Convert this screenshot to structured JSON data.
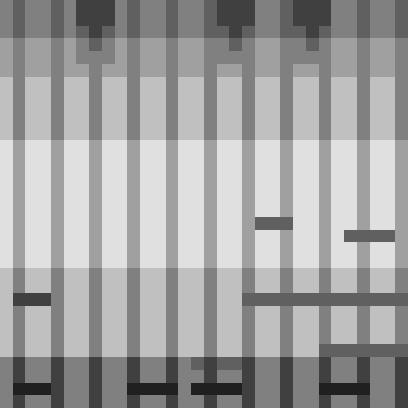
{
  "chart_data": {
    "type": "heatmap",
    "tick_labels": false,
    "cells": [
      [
        5,
        6,
        5,
        5,
        6,
        5,
        7,
        7,
        7,
        5,
        6,
        5,
        5,
        6,
        5,
        5,
        6,
        7,
        7,
        7,
        5,
        5,
        6,
        7,
        7,
        7,
        5,
        5,
        6,
        5,
        5,
        6
      ],
      [
        5,
        6,
        5,
        5,
        6,
        5,
        7,
        7,
        7,
        5,
        6,
        5,
        5,
        6,
        5,
        5,
        6,
        7,
        7,
        7,
        5,
        5,
        6,
        7,
        7,
        7,
        5,
        5,
        6,
        5,
        5,
        6
      ],
      [
        5,
        6,
        5,
        5,
        6,
        5,
        6,
        7,
        6,
        5,
        6,
        5,
        5,
        6,
        5,
        5,
        6,
        6,
        7,
        6,
        5,
        5,
        6,
        6,
        7,
        6,
        5,
        5,
        6,
        5,
        5,
        6
      ],
      [
        4,
        5,
        4,
        4,
        5,
        4,
        5,
        6,
        5,
        4,
        5,
        4,
        4,
        5,
        4,
        4,
        5,
        5,
        6,
        5,
        4,
        4,
        5,
        5,
        6,
        5,
        4,
        4,
        5,
        4,
        4,
        5
      ],
      [
        4,
        5,
        4,
        4,
        5,
        4,
        5,
        5,
        5,
        4,
        5,
        4,
        4,
        5,
        4,
        4,
        5,
        5,
        5,
        5,
        4,
        4,
        5,
        5,
        5,
        5,
        4,
        4,
        5,
        4,
        4,
        5
      ],
      [
        4,
        5,
        4,
        4,
        5,
        4,
        4,
        5,
        4,
        4,
        5,
        4,
        4,
        5,
        4,
        4,
        5,
        4,
        4,
        5,
        4,
        4,
        5,
        4,
        4,
        5,
        4,
        4,
        5,
        4,
        4,
        5
      ],
      [
        3,
        5,
        3,
        3,
        5,
        3,
        3,
        5,
        3,
        3,
        5,
        3,
        3,
        5,
        3,
        3,
        5,
        3,
        3,
        5,
        3,
        3,
        5,
        3,
        3,
        5,
        3,
        3,
        5,
        3,
        3,
        5
      ],
      [
        3,
        5,
        3,
        3,
        5,
        3,
        3,
        5,
        3,
        3,
        5,
        3,
        3,
        5,
        3,
        3,
        5,
        3,
        3,
        5,
        3,
        3,
        5,
        3,
        3,
        5,
        3,
        3,
        5,
        3,
        3,
        5
      ],
      [
        3,
        5,
        3,
        3,
        5,
        3,
        3,
        5,
        3,
        3,
        5,
        3,
        3,
        5,
        3,
        3,
        5,
        3,
        3,
        5,
        3,
        3,
        5,
        3,
        3,
        5,
        3,
        3,
        5,
        3,
        3,
        5
      ],
      [
        3,
        5,
        3,
        3,
        5,
        3,
        3,
        5,
        3,
        3,
        5,
        3,
        3,
        5,
        3,
        3,
        5,
        3,
        3,
        5,
        3,
        3,
        5,
        3,
        3,
        5,
        3,
        3,
        5,
        3,
        3,
        5
      ],
      [
        3,
        5,
        3,
        3,
        5,
        3,
        3,
        5,
        3,
        3,
        5,
        3,
        3,
        5,
        3,
        3,
        5,
        3,
        3,
        5,
        3,
        3,
        5,
        3,
        3,
        5,
        3,
        3,
        5,
        3,
        3,
        5
      ],
      [
        2,
        4,
        2,
        2,
        4,
        2,
        2,
        4,
        2,
        2,
        4,
        2,
        2,
        4,
        2,
        2,
        4,
        2,
        2,
        4,
        2,
        2,
        4,
        2,
        2,
        4,
        2,
        2,
        4,
        2,
        2,
        4
      ],
      [
        2,
        4,
        2,
        2,
        4,
        2,
        2,
        4,
        2,
        2,
        4,
        2,
        2,
        4,
        2,
        2,
        4,
        2,
        2,
        4,
        2,
        2,
        4,
        2,
        2,
        4,
        2,
        2,
        4,
        2,
        2,
        4
      ],
      [
        2,
        4,
        2,
        2,
        4,
        2,
        2,
        4,
        2,
        2,
        4,
        2,
        2,
        4,
        2,
        2,
        4,
        2,
        2,
        4,
        2,
        2,
        4,
        2,
        2,
        4,
        2,
        2,
        4,
        2,
        2,
        4
      ],
      [
        2,
        4,
        2,
        2,
        4,
        2,
        2,
        4,
        2,
        2,
        4,
        2,
        2,
        4,
        2,
        2,
        4,
        2,
        2,
        4,
        2,
        2,
        4,
        2,
        2,
        4,
        2,
        2,
        4,
        2,
        2,
        4
      ],
      [
        2,
        4,
        2,
        2,
        4,
        2,
        2,
        4,
        2,
        2,
        4,
        2,
        2,
        4,
        2,
        2,
        4,
        2,
        2,
        4,
        2,
        2,
        4,
        2,
        2,
        4,
        2,
        2,
        4,
        2,
        2,
        4
      ],
      [
        2,
        4,
        2,
        2,
        4,
        2,
        2,
        4,
        2,
        2,
        4,
        2,
        2,
        4,
        2,
        2,
        4,
        2,
        2,
        4,
        2,
        2,
        4,
        2,
        2,
        4,
        2,
        2,
        4,
        2,
        2,
        4
      ],
      [
        2,
        4,
        2,
        2,
        4,
        2,
        2,
        4,
        2,
        2,
        4,
        2,
        2,
        4,
        2,
        2,
        4,
        2,
        2,
        4,
        6,
        6,
        6,
        2,
        2,
        4,
        2,
        2,
        4,
        2,
        2,
        4
      ],
      [
        2,
        4,
        2,
        2,
        4,
        2,
        2,
        4,
        2,
        2,
        4,
        2,
        2,
        4,
        2,
        2,
        4,
        2,
        2,
        4,
        2,
        2,
        4,
        2,
        2,
        4,
        2,
        6,
        6,
        6,
        6,
        4
      ],
      [
        2,
        4,
        2,
        2,
        4,
        2,
        2,
        4,
        2,
        2,
        4,
        2,
        2,
        4,
        2,
        2,
        4,
        2,
        2,
        4,
        2,
        2,
        4,
        2,
        2,
        4,
        2,
        2,
        4,
        2,
        2,
        4
      ],
      [
        2,
        4,
        2,
        2,
        4,
        2,
        2,
        4,
        2,
        2,
        4,
        2,
        2,
        4,
        2,
        2,
        4,
        2,
        2,
        4,
        2,
        2,
        4,
        2,
        2,
        4,
        2,
        2,
        4,
        2,
        2,
        4
      ],
      [
        3,
        5,
        3,
        3,
        5,
        3,
        3,
        5,
        3,
        3,
        5,
        3,
        3,
        5,
        3,
        3,
        5,
        3,
        3,
        5,
        3,
        3,
        5,
        3,
        3,
        5,
        3,
        3,
        5,
        3,
        3,
        5
      ],
      [
        3,
        5,
        3,
        3,
        5,
        3,
        3,
        5,
        3,
        3,
        5,
        3,
        3,
        5,
        3,
        3,
        5,
        3,
        3,
        5,
        3,
        3,
        5,
        3,
        3,
        5,
        3,
        3,
        5,
        3,
        3,
        5
      ],
      [
        3,
        7,
        7,
        7,
        5,
        3,
        3,
        5,
        3,
        3,
        5,
        3,
        3,
        5,
        3,
        3,
        5,
        3,
        3,
        6,
        6,
        6,
        6,
        6,
        6,
        6,
        6,
        6,
        6,
        6,
        6,
        6
      ],
      [
        3,
        5,
        3,
        3,
        5,
        3,
        3,
        5,
        3,
        3,
        5,
        3,
        3,
        5,
        3,
        3,
        5,
        3,
        3,
        5,
        3,
        3,
        5,
        3,
        3,
        5,
        3,
        3,
        5,
        3,
        3,
        5
      ],
      [
        3,
        5,
        3,
        3,
        5,
        3,
        3,
        5,
        3,
        3,
        5,
        3,
        3,
        5,
        3,
        3,
        5,
        3,
        3,
        5,
        3,
        3,
        5,
        3,
        3,
        5,
        3,
        3,
        5,
        3,
        3,
        5
      ],
      [
        3,
        5,
        3,
        3,
        5,
        3,
        3,
        5,
        3,
        3,
        5,
        3,
        3,
        5,
        3,
        3,
        5,
        3,
        3,
        5,
        3,
        3,
        5,
        3,
        3,
        5,
        3,
        3,
        5,
        3,
        3,
        5
      ],
      [
        3,
        5,
        3,
        3,
        5,
        3,
        3,
        5,
        3,
        3,
        5,
        3,
        3,
        5,
        3,
        3,
        5,
        3,
        3,
        5,
        3,
        3,
        5,
        3,
        3,
        6,
        6,
        6,
        6,
        6,
        6,
        6
      ],
      [
        5,
        7,
        5,
        5,
        7,
        5,
        5,
        7,
        5,
        5,
        7,
        5,
        5,
        7,
        5,
        6,
        7,
        6,
        6,
        7,
        5,
        5,
        7,
        5,
        5,
        7,
        5,
        5,
        7,
        5,
        5,
        7
      ],
      [
        5,
        7,
        5,
        5,
        7,
        5,
        5,
        7,
        5,
        5,
        7,
        5,
        5,
        7,
        5,
        5,
        7,
        5,
        5,
        7,
        5,
        5,
        7,
        5,
        5,
        7,
        5,
        5,
        7,
        5,
        5,
        7
      ],
      [
        5,
        8,
        8,
        8,
        7,
        5,
        5,
        7,
        5,
        5,
        8,
        8,
        8,
        8,
        5,
        8,
        8,
        8,
        8,
        7,
        5,
        5,
        7,
        5,
        5,
        8,
        8,
        8,
        8,
        5,
        5,
        7
      ],
      [
        5,
        7,
        5,
        5,
        7,
        5,
        5,
        7,
        5,
        5,
        7,
        5,
        5,
        7,
        5,
        5,
        7,
        5,
        5,
        7,
        5,
        5,
        7,
        5,
        5,
        7,
        5,
        5,
        7,
        5,
        5,
        7
      ]
    ]
  }
}
